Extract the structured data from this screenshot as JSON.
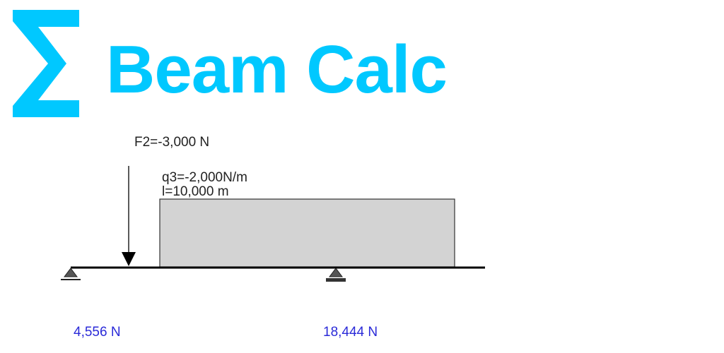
{
  "app": {
    "title": "Beam Calc",
    "logo_icon": "sigma-icon",
    "accent_color": "#00c8ff"
  },
  "beam": {
    "point_load": {
      "label": "F2=-3,000 N",
      "value_N": -3000
    },
    "distributed_load": {
      "label_q": "q3=-2,000N/m",
      "label_l": "l=10,000 m",
      "q_N_per_m": -2000,
      "length_m": 10000,
      "fill_color": "#d3d3d3"
    },
    "supports": [
      {
        "type": "pinned",
        "icon": "pinned-support-icon"
      },
      {
        "type": "roller",
        "icon": "roller-support-icon"
      }
    ],
    "reactions": [
      {
        "label": "4,556 N",
        "value_N": 4556
      },
      {
        "label": "18,444 N",
        "value_N": 18444
      }
    ],
    "reaction_color": "#2a2ad8"
  }
}
